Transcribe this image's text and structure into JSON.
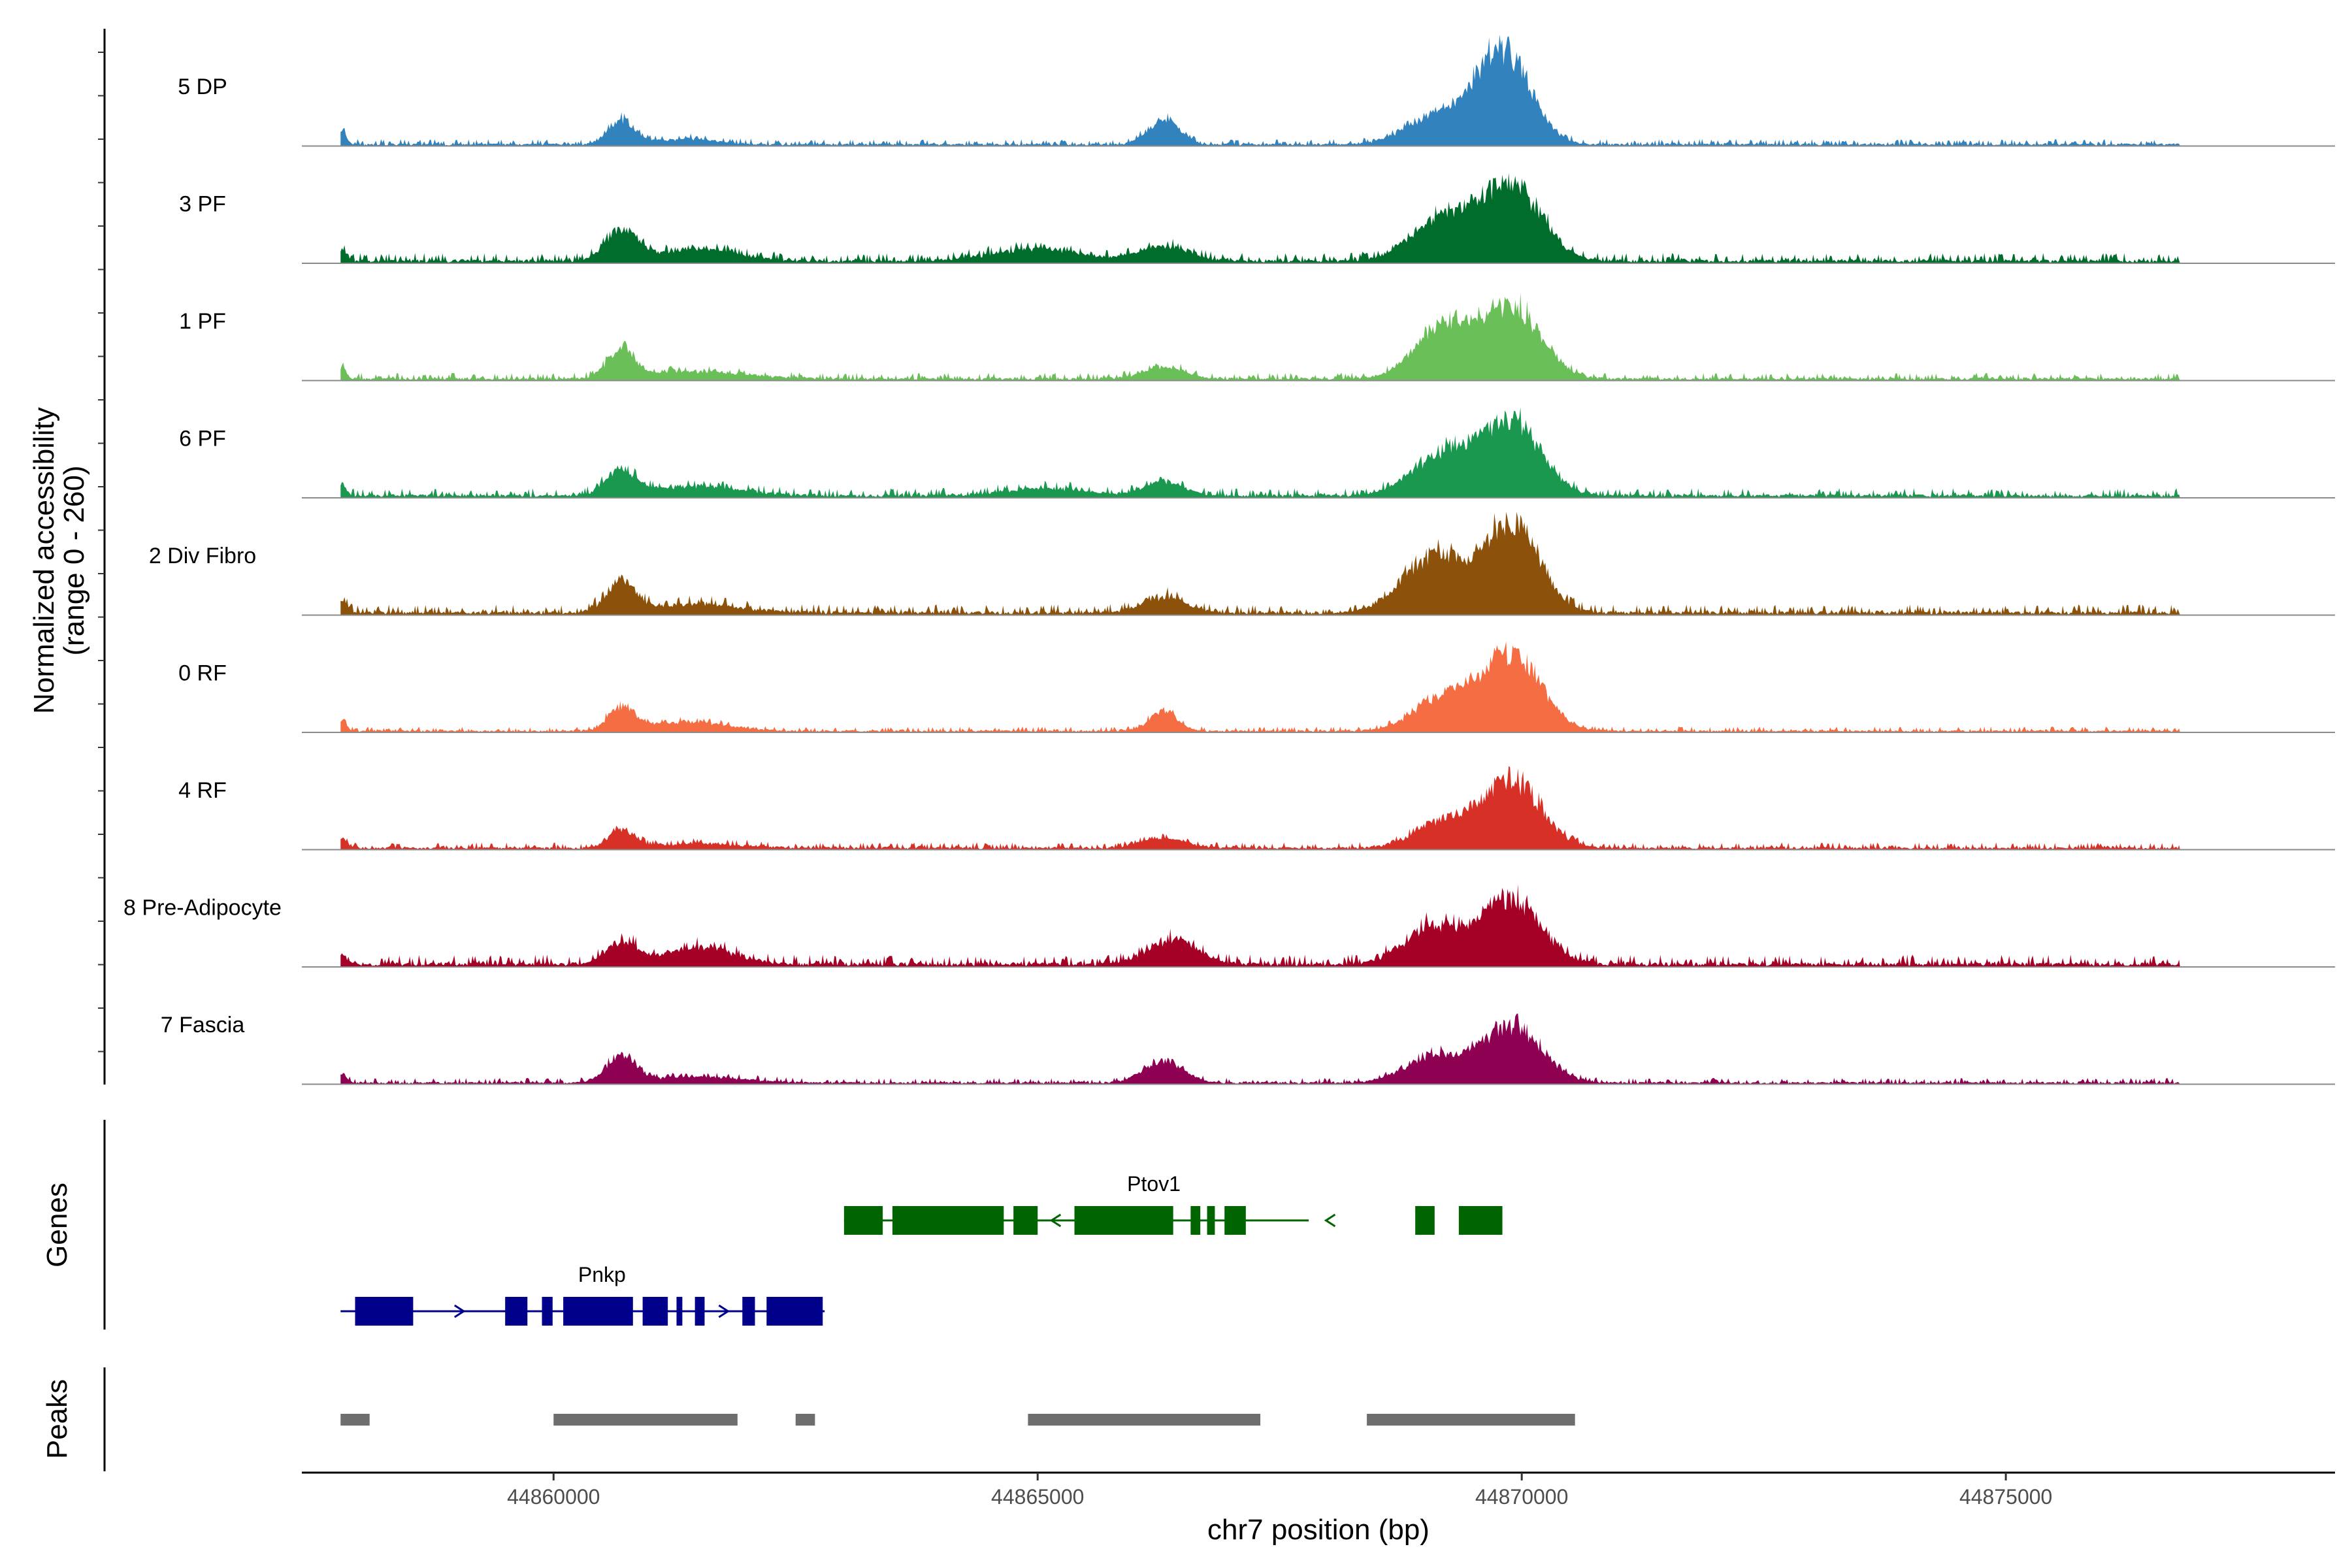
{
  "chart_data": {
    "type": "area",
    "chromosome": "chr7",
    "xlabel": "chr7 position (bp)",
    "ylabel": "Normalized accessibility\n(range 0 - 260)",
    "y_range": [
      0,
      260
    ],
    "xlim": [
      44857400,
      44878400
    ],
    "x_ticks": [
      44860000,
      44865000,
      44870000,
      44875000
    ],
    "tracks": [
      {
        "name": "5 DP",
        "color": "#3182BD",
        "noise": 0.03,
        "scale": 0.95,
        "peaks": [
          [
            44860700,
            0.22,
            140
          ],
          [
            44861400,
            0.05,
            300
          ],
          [
            44866300,
            0.22,
            160
          ],
          [
            44869100,
            0.25,
            300
          ],
          [
            44869800,
            0.85,
            280
          ]
        ]
      },
      {
        "name": "3 PF",
        "color": "#006D2C",
        "noise": 0.05,
        "scale": 0.85,
        "peaks": [
          [
            44860700,
            0.3,
            160
          ],
          [
            44861500,
            0.12,
            400
          ],
          [
            44865000,
            0.12,
            450
          ],
          [
            44866300,
            0.15,
            250
          ],
          [
            44869200,
            0.45,
            320
          ],
          [
            44869900,
            0.75,
            300
          ]
        ]
      },
      {
        "name": "1 PF",
        "color": "#6BBF59",
        "noise": 0.04,
        "scale": 0.8,
        "peaks": [
          [
            44860700,
            0.3,
            140
          ],
          [
            44861500,
            0.08,
            500
          ],
          [
            44866300,
            0.12,
            220
          ],
          [
            44869200,
            0.55,
            300
          ],
          [
            44869900,
            0.75,
            300
          ]
        ]
      },
      {
        "name": "6 PF",
        "color": "#1A9850",
        "noise": 0.05,
        "scale": 0.8,
        "peaks": [
          [
            44860700,
            0.25,
            160
          ],
          [
            44861500,
            0.1,
            450
          ],
          [
            44865100,
            0.08,
            400
          ],
          [
            44866300,
            0.15,
            200
          ],
          [
            44869200,
            0.45,
            320
          ],
          [
            44869900,
            0.75,
            300
          ]
        ]
      },
      {
        "name": "2 Div Fibro",
        "color": "#8C510A",
        "noise": 0.05,
        "scale": 0.88,
        "peaks": [
          [
            44860700,
            0.3,
            150
          ],
          [
            44861500,
            0.08,
            450
          ],
          [
            44866300,
            0.15,
            220
          ],
          [
            44869100,
            0.55,
            320
          ],
          [
            44869900,
            0.85,
            280
          ]
        ]
      },
      {
        "name": "0 RF",
        "color": "#F46D43",
        "noise": 0.03,
        "scale": 0.8,
        "peaks": [
          [
            44860700,
            0.25,
            130
          ],
          [
            44861400,
            0.1,
            400
          ],
          [
            44866300,
            0.22,
            140
          ],
          [
            44869200,
            0.35,
            300
          ],
          [
            44869900,
            0.8,
            300
          ]
        ]
      },
      {
        "name": "4 RF",
        "color": "#D73027",
        "noise": 0.04,
        "scale": 0.75,
        "peaks": [
          [
            44860700,
            0.2,
            130
          ],
          [
            44861500,
            0.05,
            450
          ],
          [
            44866300,
            0.12,
            220
          ],
          [
            44869200,
            0.3,
            300
          ],
          [
            44869900,
            0.75,
            300
          ]
        ]
      },
      {
        "name": "8 Pre-Adipocyte",
        "color": "#A50026",
        "noise": 0.07,
        "scale": 0.72,
        "peaks": [
          [
            44860700,
            0.25,
            160
          ],
          [
            44861500,
            0.2,
            350
          ],
          [
            44866400,
            0.3,
            250
          ],
          [
            44869100,
            0.45,
            300
          ],
          [
            44869900,
            0.75,
            300
          ]
        ]
      },
      {
        "name": "7 Fascia",
        "color": "#8E0152",
        "noise": 0.04,
        "scale": 0.65,
        "peaks": [
          [
            44860700,
            0.35,
            150
          ],
          [
            44861500,
            0.08,
            450
          ],
          [
            44866300,
            0.3,
            200
          ],
          [
            44869100,
            0.35,
            300
          ],
          [
            44869900,
            0.75,
            300
          ]
        ]
      }
    ],
    "genes": [
      {
        "name": "Ptov1",
        "strand": "-",
        "color": "#006400",
        "start": 44863000,
        "end": 44867800,
        "exons": [
          [
            44863000,
            44863400
          ],
          [
            44863500,
            44864650
          ],
          [
            44864750,
            44865000
          ],
          [
            44865380,
            44866400
          ],
          [
            44866580,
            44866680
          ],
          [
            44866750,
            44866830
          ],
          [
            44866930,
            44867150
          ],
          [
            44868900,
            44869100
          ],
          [
            44869350,
            44869800
          ]
        ]
      },
      {
        "name": "Pnkp",
        "strand": "+",
        "color": "#00008B",
        "start": 44857800,
        "end": 44862800,
        "exons": [
          [
            44857950,
            44858550
          ],
          [
            44859500,
            44859730
          ],
          [
            44859880,
            44859990
          ],
          [
            44860100,
            44860820
          ],
          [
            44860920,
            44861180
          ],
          [
            44861270,
            44861330
          ],
          [
            44861460,
            44861560
          ],
          [
            44861950,
            44862080
          ],
          [
            44862200,
            44862780
          ]
        ]
      }
    ],
    "peaks_track": {
      "title": "Peaks",
      "color": "#6E6E6E",
      "regions": [
        [
          44857800,
          44858100
        ],
        [
          44860000,
          44861900
        ],
        [
          44862500,
          44862700
        ],
        [
          44864900,
          44867300
        ],
        [
          44868400,
          44870550
        ]
      ]
    },
    "genes_track_title": "Genes"
  }
}
